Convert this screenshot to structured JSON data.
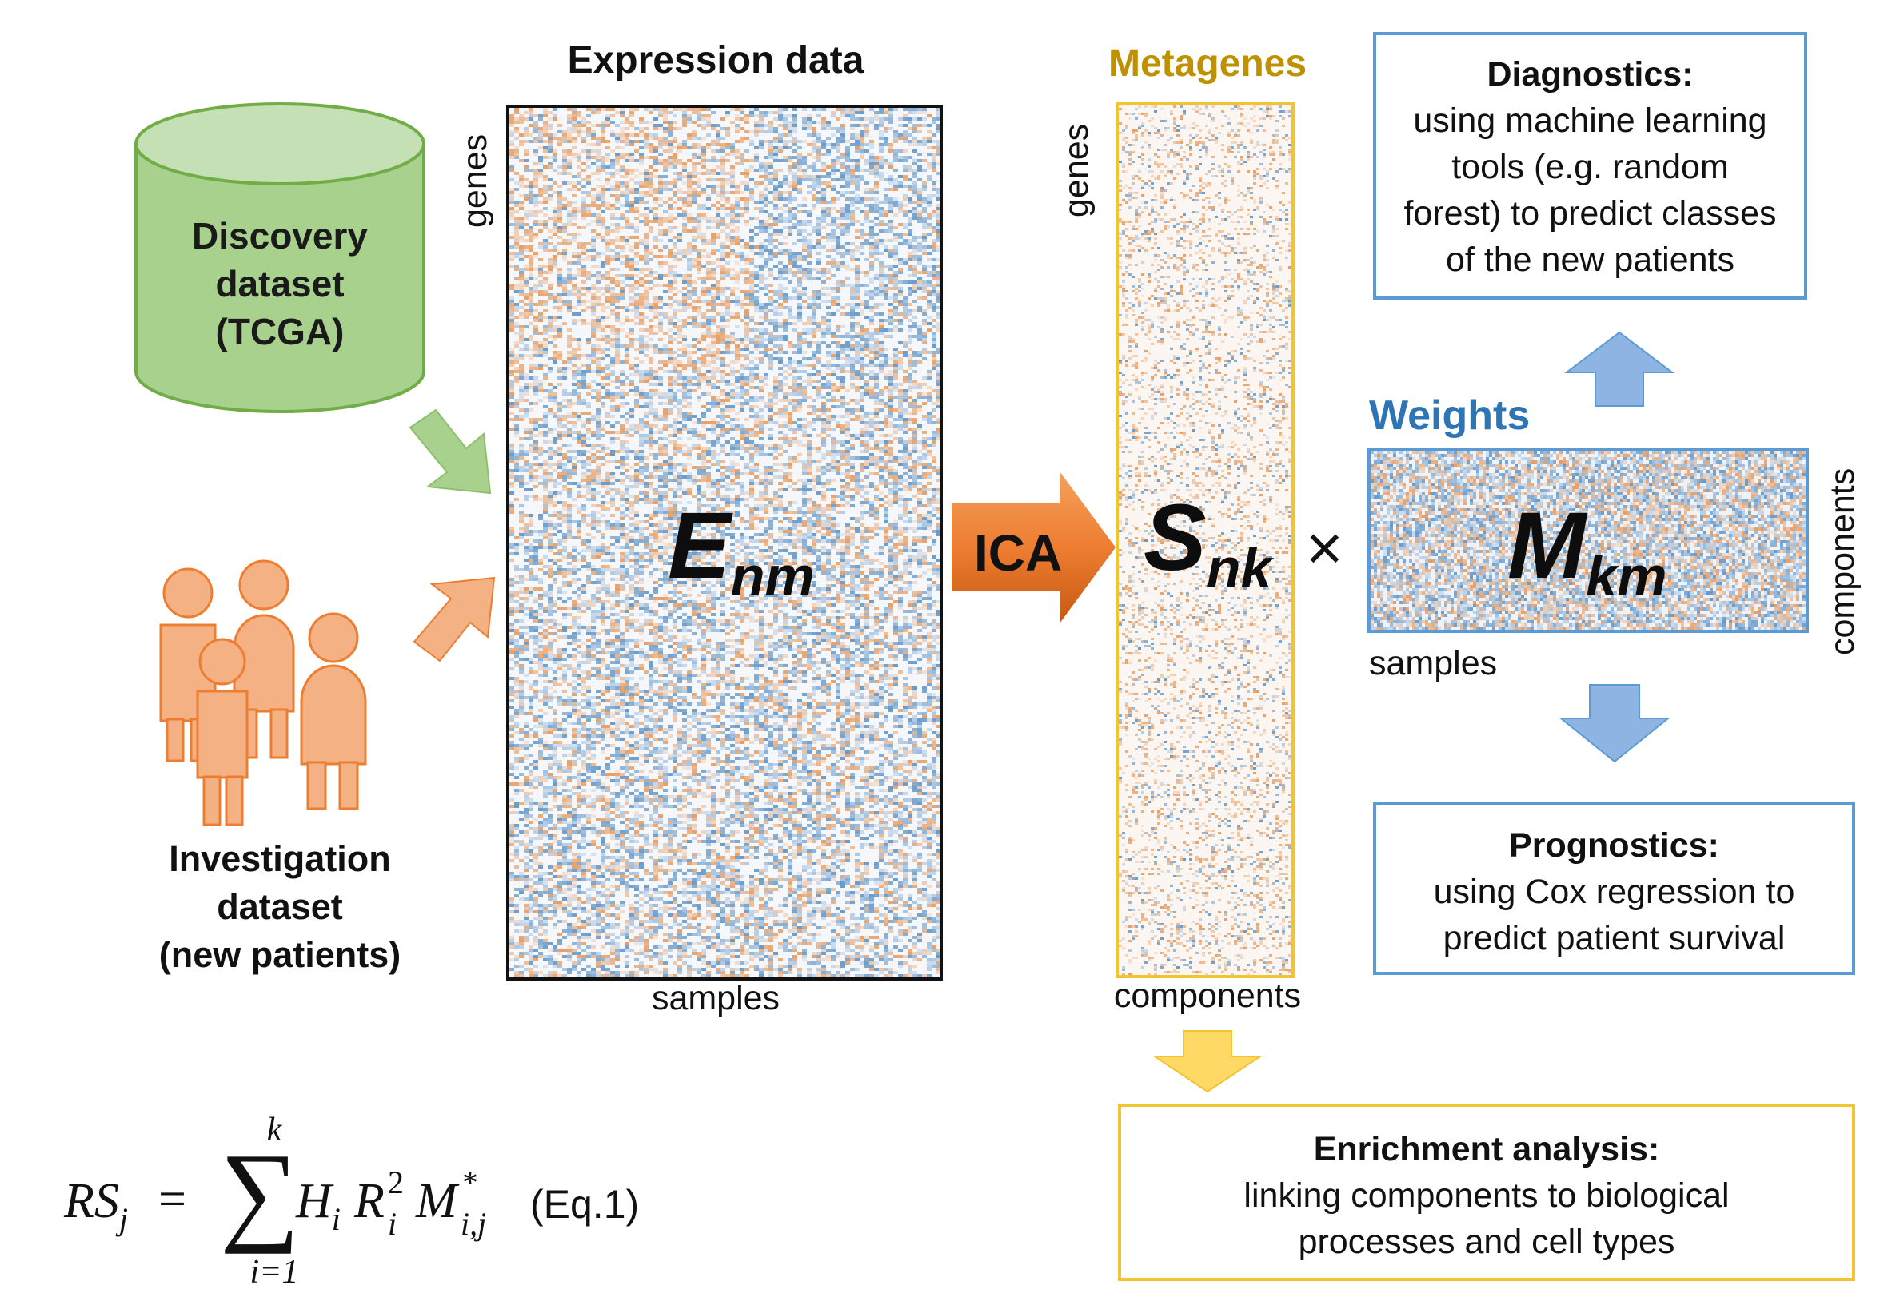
{
  "discovery": {
    "lines": [
      "Discovery",
      "dataset",
      "(TCGA)"
    ],
    "color": "#a9d18e",
    "stroke": "#70ad47"
  },
  "investigation": {
    "lines": [
      "Investigation",
      "dataset",
      "(new patients)"
    ],
    "color": "#f4b183",
    "stroke": "#ed7d31"
  },
  "expression": {
    "title": "Expression data",
    "row_label": "genes",
    "col_label": "samples",
    "symbol": "E",
    "subscript": "nm"
  },
  "ica": {
    "label": "ICA",
    "color": "#ed7d31"
  },
  "metagenes": {
    "title": "Metagenes",
    "row_label": "genes",
    "col_label": "components",
    "symbol": "S",
    "subscript": "nk",
    "color": "#bf9000",
    "border": "#f4c430"
  },
  "times_symbol": "×",
  "weights": {
    "title": "Weights",
    "col_label": "samples",
    "row_label": "components",
    "symbol": "M",
    "subscript": "km",
    "color": "#2e75b6",
    "border": "#5b9bd5"
  },
  "diagnostics": {
    "title": "Diagnostics:",
    "lines": [
      "using machine learning",
      "tools (e.g. random",
      "forest) to predict classes",
      "of the new patients"
    ],
    "border": "#5b9bd5"
  },
  "prognostics": {
    "title": "Prognostics:",
    "lines": [
      "using Cox regression to",
      "predict patient survival"
    ],
    "border": "#5b9bd5"
  },
  "enrichment": {
    "title": "Enrichment analysis:",
    "lines": [
      "linking  components to biological",
      "processes and cell types"
    ],
    "border": "#f4c430"
  },
  "formula": {
    "lhs": "RS",
    "lhs_sub": "j",
    "equals": "=",
    "sum_upper": "k",
    "sum_lower": "i=1",
    "term_H": "H",
    "term_H_sub": "i",
    "term_R": "R",
    "term_R_sub": "i",
    "term_R_sup": "2",
    "term_M": "M",
    "term_M_sub": "i,j",
    "term_M_sup": "*",
    "tag": "(Eq.1)"
  },
  "colors": {
    "heat_blue": "#2e75b6",
    "heat_orange": "#e07b2a",
    "arrow_blue": "#8db4e2",
    "arrow_yellow": "#ffd966",
    "arrow_green": "#a9d18e",
    "arrow_orange": "#f4b183"
  }
}
